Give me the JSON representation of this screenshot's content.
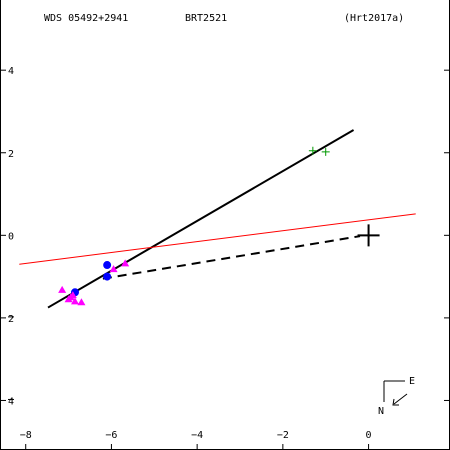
{
  "header": {
    "left": "WDS 05492+2941",
    "center": "BRT2521",
    "right": "(Hrt2017a)"
  },
  "compass": {
    "east": "E",
    "north": "N"
  },
  "chart_data": {
    "type": "scatter",
    "title": "",
    "xlabel": "",
    "ylabel": "",
    "xlim": [
      -8.6,
      1.9
    ],
    "ylim": [
      -5.2,
      5.7
    ],
    "x_ticks": [
      -8,
      -6,
      -4,
      -2,
      0
    ],
    "x_tick_labels": [
      "−8",
      "−6",
      "−4",
      "−2",
      "0"
    ],
    "y_ticks": [
      4,
      2,
      0,
      -2,
      -4
    ],
    "y_tick_labels": [
      "4",
      "2",
      "0",
      "2",
      "4"
    ],
    "grid": false,
    "primary_star": {
      "x": 0,
      "y": 0
    },
    "lines": [
      {
        "name": "",
        "style": "solid",
        "color": "#000000",
        "x1": -7.48,
        "y1": -1.75,
        "x2": -0.35,
        "y2": 2.55
      },
      {
        "name": "",
        "style": "solid",
        "color": "#ff0000",
        "x1": -8.15,
        "y1": -0.7,
        "x2": 1.1,
        "y2": 0.52
      },
      {
        "name": "",
        "style": "dashed",
        "color": "#000000",
        "x1": -6.2,
        "y1": -1.05,
        "x2": -0.2,
        "y2": -0.02
      }
    ],
    "series": [
      {
        "marker": "circle",
        "color": "#0000ff",
        "points": [
          {
            "x": -6.1,
            "y": -0.72
          },
          {
            "x": -6.1,
            "y": -1.0
          },
          {
            "x": -6.85,
            "y": -1.38
          }
        ]
      },
      {
        "marker": "triangle",
        "color": "#ff00ff",
        "points": [
          {
            "x": -5.68,
            "y": -0.68
          },
          {
            "x": -5.95,
            "y": -0.82
          },
          {
            "x": -7.15,
            "y": -1.32
          },
          {
            "x": -6.9,
            "y": -1.45
          },
          {
            "x": -7.0,
            "y": -1.55
          },
          {
            "x": -6.85,
            "y": -1.6
          },
          {
            "x": -6.7,
            "y": -1.62
          },
          {
            "x": -6.95,
            "y": -1.5
          }
        ]
      },
      {
        "marker": "plus",
        "color": "#009900",
        "points": [
          {
            "x": -1.3,
            "y": 2.05
          },
          {
            "x": -1.0,
            "y": 2.02
          }
        ]
      }
    ]
  }
}
